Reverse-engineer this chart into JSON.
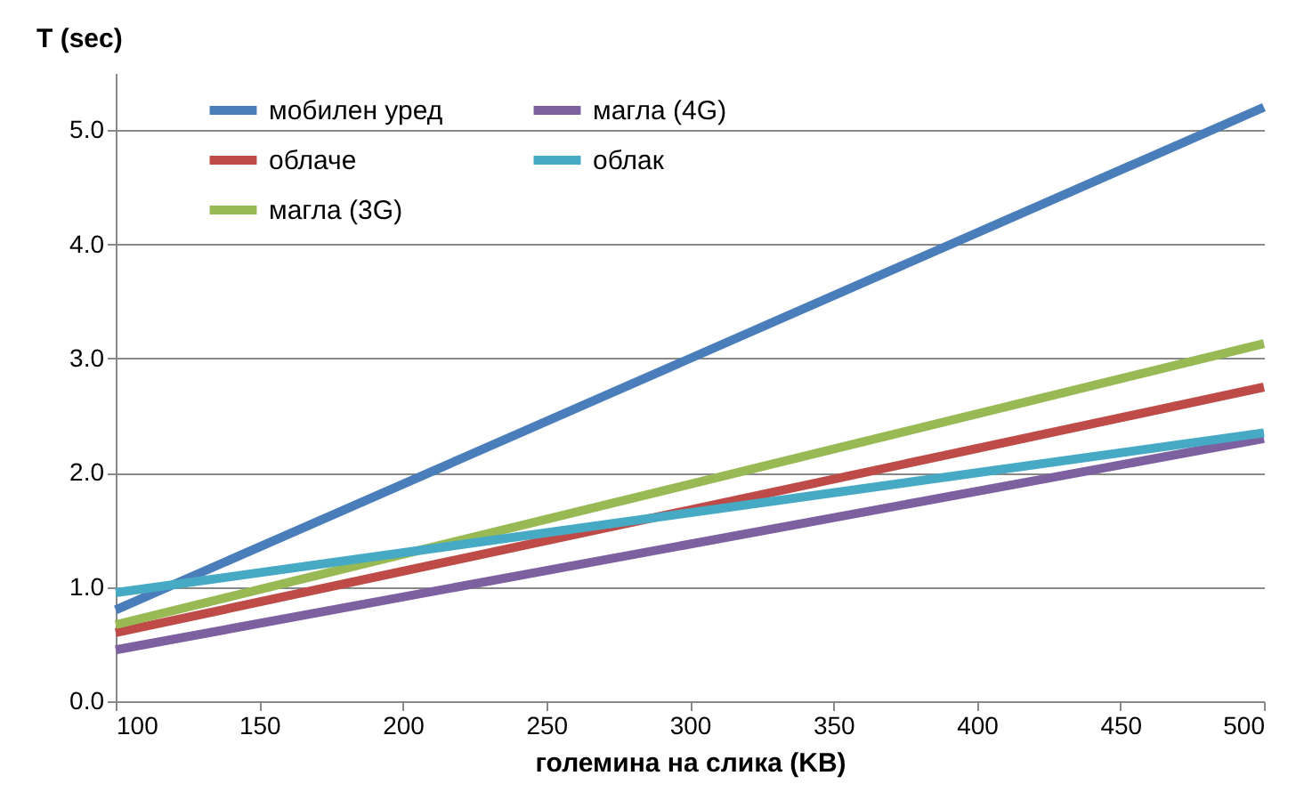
{
  "chart_data": {
    "type": "line",
    "xlabel": "големина на слика (KB)",
    "ylabel": "T (sec)",
    "x": [
      100,
      500
    ],
    "series": [
      {
        "name": "мобилен уред",
        "color": "#4a7ebb",
        "values": [
          0.8,
          5.2
        ]
      },
      {
        "name": "облаче",
        "color": "#be4b48",
        "values": [
          0.6,
          2.75
        ]
      },
      {
        "name": "магла (3G)",
        "color": "#98b954",
        "values": [
          0.67,
          3.13
        ]
      },
      {
        "name": "магла (4G)",
        "color": "#7d60a0",
        "values": [
          0.45,
          2.3
        ]
      },
      {
        "name": "облак",
        "color": "#46aac5",
        "values": [
          0.95,
          2.35
        ]
      }
    ],
    "xlim": [
      100,
      500
    ],
    "xticks": [
      100,
      150,
      200,
      250,
      300,
      350,
      400,
      450,
      500
    ],
    "ylim": [
      0,
      5.5
    ],
    "yticks": [
      {
        "value": 0,
        "label": "0.0"
      },
      {
        "value": 1,
        "label": "1.0"
      },
      {
        "value": 2,
        "label": "2.0"
      },
      {
        "value": 3,
        "label": "3.0"
      },
      {
        "value": 4,
        "label": "4.0"
      },
      {
        "value": 5,
        "label": "5.0"
      }
    ],
    "grid": "y",
    "legend": "top left",
    "marker": "none",
    "line_style": "solid"
  }
}
